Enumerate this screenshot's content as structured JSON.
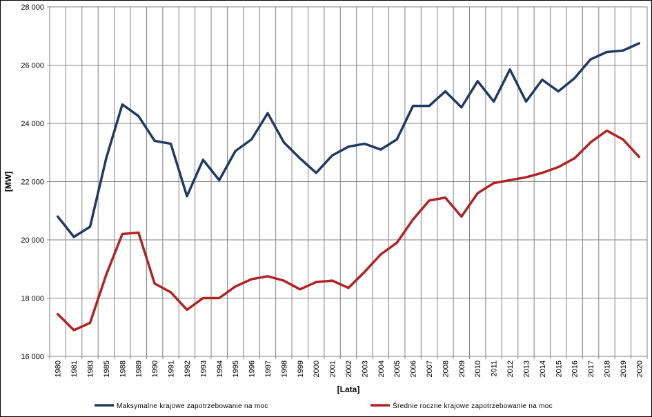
{
  "chart_data": {
    "type": "line",
    "title": "",
    "xlabel": "[Lata]",
    "ylabel": "[MW]",
    "ylim": [
      16000,
      28000
    ],
    "yticks": [
      16000,
      18000,
      20000,
      22000,
      24000,
      26000,
      28000
    ],
    "ytick_labels": [
      "16 000",
      "18 000",
      "20 000",
      "22 000",
      "24 000",
      "26 000",
      "28 000"
    ],
    "grid": true,
    "legend_position": "bottom",
    "categories": [
      "1980",
      "1981",
      "1983",
      "1985",
      "1988",
      "1989",
      "1990",
      "1991",
      "1992",
      "1993",
      "1994",
      "1995",
      "1996",
      "1997",
      "1998",
      "1999",
      "2000",
      "2001",
      "2002",
      "2003",
      "2004",
      "2005",
      "2006",
      "2007",
      "2008",
      "2009",
      "2010",
      "2011",
      "2012",
      "2013",
      "2014",
      "2015",
      "2016",
      "2017",
      "2018",
      "2019",
      "2020"
    ],
    "series": [
      {
        "name": "Maksymalne krajowe zapotrzebowanie na moc",
        "color": "#1f3864",
        "values": [
          20800,
          20100,
          20450,
          22800,
          24650,
          24250,
          23400,
          23300,
          21500,
          22750,
          22050,
          23050,
          23450,
          24350,
          23350,
          22800,
          22300,
          22900,
          23200,
          23300,
          23100,
          23450,
          24600,
          24600,
          25100,
          24550,
          25450,
          24750,
          25850,
          24750,
          25500,
          25100,
          25550,
          26200,
          26450,
          26500,
          26750
        ]
      },
      {
        "name": "Średnie roczne krajowe zapotrzebowanie na moc",
        "color": "#b22222",
        "values": [
          17450,
          16900,
          17150,
          18800,
          20200,
          20250,
          18500,
          18200,
          17600,
          18000,
          18000,
          18400,
          18650,
          18750,
          18600,
          18300,
          18550,
          18600,
          18350,
          18900,
          19500,
          19900,
          20700,
          21350,
          21450,
          20800,
          21600,
          21950,
          22050,
          22150,
          22300,
          22500,
          22800,
          23350,
          23750,
          23450,
          22850
        ]
      }
    ]
  }
}
